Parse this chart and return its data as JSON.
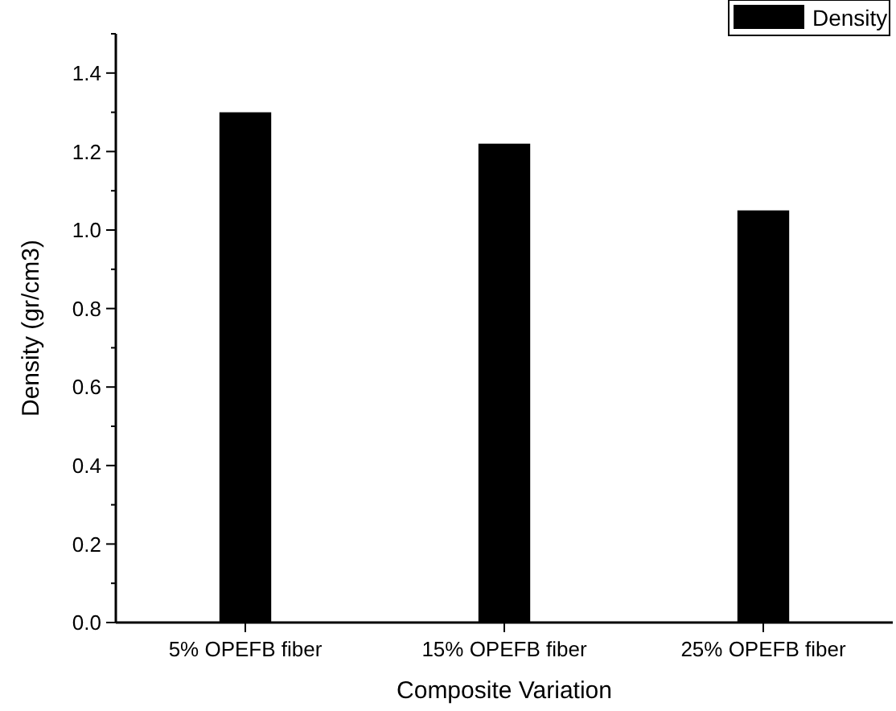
{
  "chart_data": {
    "type": "bar",
    "xlabel": "Composite Variation",
    "ylabel": "Density (gr/cm3)",
    "categories": [
      "5% OPEFB fiber",
      "15% OPEFB fiber",
      "25% OPEFB fiber"
    ],
    "series": [
      {
        "name": "Density",
        "color": "#000000",
        "values": [
          1.3,
          1.22,
          1.05
        ]
      }
    ],
    "ylim": [
      0,
      1.5
    ],
    "yticks": [
      {
        "value": 0,
        "label": "0.0"
      },
      {
        "value": 0.1,
        "label": null
      },
      {
        "value": 0.2,
        "label": "0.2"
      },
      {
        "value": 0.3,
        "label": null
      },
      {
        "value": 0.4,
        "label": "0.4"
      },
      {
        "value": 0.5,
        "label": null
      },
      {
        "value": 0.6,
        "label": "0.6"
      },
      {
        "value": 0.7,
        "label": null
      },
      {
        "value": 0.8,
        "label": "0.8"
      },
      {
        "value": 0.9,
        "label": null
      },
      {
        "value": 1.0,
        "label": "1.0"
      },
      {
        "value": 1.1,
        "label": null
      },
      {
        "value": 1.2,
        "label": "1.2"
      },
      {
        "value": 1.3,
        "label": null
      },
      {
        "value": 1.4,
        "label": "1.4"
      },
      {
        "value": 1.5,
        "label": null
      }
    ],
    "legend": "top right",
    "grid": false
  }
}
